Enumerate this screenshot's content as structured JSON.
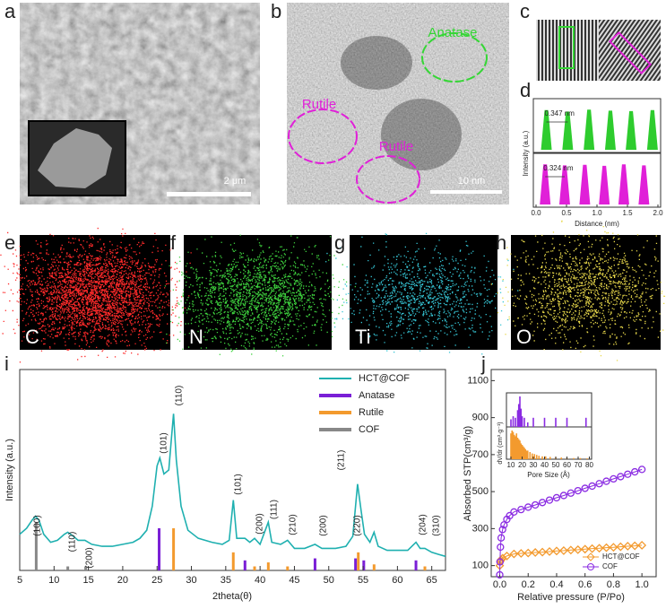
{
  "panel_labels": [
    "a",
    "b",
    "c",
    "d",
    "e",
    "f",
    "g",
    "h",
    "i",
    "j"
  ],
  "images": {
    "a": {
      "scale_bar": "2 μm"
    },
    "b": {
      "scale_bar": "10 nm",
      "annotations": [
        "Anatase",
        "Rutile",
        "Rutile"
      ]
    },
    "eds": [
      "C",
      "N",
      "Ti",
      "O"
    ]
  },
  "chart_data": [
    {
      "type": "bar",
      "x_label": "Distance (nm)",
      "y_label": "Intensity (a.u.)",
      "xlim": [
        0,
        2
      ],
      "xticks": [
        {
          "value": 0,
          "label": "0.0"
        },
        {
          "value": 0.5,
          "label": "0.5"
        },
        {
          "value": 1,
          "label": "1.0"
        },
        {
          "value": 1.5,
          "label": "1.5"
        },
        {
          "value": 2,
          "label": "2.0"
        }
      ],
      "ylim": [
        0,
        1
      ],
      "annotations": [
        "0.347 nm",
        "0.324 nm"
      ],
      "series": [
        {
          "color": "#2ecc2e",
          "x": [
            0.17,
            0.52,
            0.87,
            1.22,
            1.56,
            1.91
          ],
          "values": [
            0.85,
            0.82,
            0.86,
            0.84,
            0.83,
            0.85
          ]
        },
        {
          "color": "#e020d8",
          "x": [
            0.15,
            0.47,
            0.8,
            1.12,
            1.44,
            1.77
          ],
          "values": [
            0.86,
            0.84,
            0.85,
            0.83,
            0.86,
            0.84
          ]
        }
      ]
    },
    {
      "type": "line",
      "x_label": "2theta(θ)",
      "y_label": "Intensity (a.u.)",
      "xlim": [
        5,
        67
      ],
      "xticks": [
        5,
        10,
        15,
        20,
        25,
        30,
        35,
        40,
        45,
        50,
        55,
        60,
        65
      ],
      "ylim": [
        0,
        100
      ],
      "legend": "upper right",
      "annotations": [
        "(100)",
        "(110)",
        "(200)",
        "(101)",
        "(110)",
        "(101)",
        "(200)",
        "(111)",
        "(210)",
        "(200)",
        "(211)",
        "(220)",
        "(204)",
        "(310)"
      ],
      "series": [
        {
          "name": "HCT@COF",
          "color": "#1fb0b0",
          "mark": "line",
          "x": [
            5,
            6,
            6.8,
            7.3,
            7.8,
            8.5,
            9.5,
            10.5,
            11.5,
            12,
            12.8,
            13.5,
            14.5,
            15.5,
            17,
            18.5,
            20,
            21.5,
            22.5,
            23.5,
            24.3,
            25,
            25.4,
            26,
            26.7,
            27.1,
            27.4,
            27.8,
            28.5,
            29.5,
            31,
            33,
            34.5,
            35.5,
            36.1,
            36.6,
            37.8,
            38.5,
            39.2,
            40,
            41.2,
            41.7,
            43,
            44,
            45,
            46.5,
            48,
            49,
            51,
            52.5,
            53.5,
            54.2,
            54.7,
            55.2,
            56,
            56.6,
            57.2,
            58.5,
            60,
            61.5,
            62.7,
            63.3,
            64,
            65,
            66,
            67
          ],
          "values": [
            18,
            21,
            25,
            27,
            25,
            18,
            14,
            15,
            18,
            19,
            17,
            15,
            15,
            13,
            12,
            12,
            13,
            14,
            16,
            20,
            32,
            52,
            56,
            48,
            50,
            66,
            78,
            55,
            32,
            20,
            16,
            14,
            13,
            15,
            35,
            16,
            16,
            14,
            16,
            13,
            24,
            14,
            13,
            15,
            11,
            11,
            13,
            11,
            11,
            12,
            17,
            43,
            30,
            18,
            14,
            19,
            12,
            10,
            10,
            10,
            14,
            11,
            11,
            9,
            8,
            7
          ]
        },
        {
          "name": "Anatase",
          "color": "#7a1fd6",
          "mark": "bar",
          "x": [
            25.3,
            37.8,
            48.0,
            53.9,
            55.1,
            62.7
          ],
          "values": [
            21,
            5,
            6,
            6,
            5,
            5
          ]
        },
        {
          "name": "Rutile",
          "color": "#f39a2e",
          "mark": "bar",
          "x": [
            27.4,
            36.1,
            39.2,
            41.2,
            44.0,
            54.3,
            56.6,
            64.0
          ],
          "values": [
            21,
            9,
            2,
            4,
            2,
            9,
            3,
            2
          ]
        },
        {
          "name": "COF",
          "color": "#888888",
          "mark": "bar",
          "x": [
            7.4,
            12.0,
            14.6
          ],
          "values": [
            24,
            2,
            2
          ]
        }
      ]
    },
    {
      "type": "scatter",
      "x_label": "Relative pressure (P/Po)",
      "y_label": "Absorbed STP(cm³/g)",
      "xlim": [
        -0.06,
        1.1
      ],
      "xticks": [
        {
          "value": 0,
          "label": "0.0"
        },
        {
          "value": 0.2,
          "label": "0.2"
        },
        {
          "value": 0.4,
          "label": "0.4"
        },
        {
          "value": 0.6,
          "label": "0.6"
        },
        {
          "value": 0.8,
          "label": "0.8"
        },
        {
          "value": 1,
          "label": "1.0"
        }
      ],
      "ylim": [
        40,
        1160
      ],
      "yticks": [
        100,
        300,
        500,
        700,
        900,
        1100
      ],
      "legend": "lower right",
      "series": [
        {
          "name": "HCT@COF",
          "color": "#f39a2e",
          "marker": "diamond",
          "x": [
            0,
            0.005,
            0.01,
            0.02,
            0.05,
            0.1,
            0.15,
            0.2,
            0.25,
            0.3,
            0.35,
            0.4,
            0.45,
            0.5,
            0.55,
            0.6,
            0.65,
            0.7,
            0.75,
            0.8,
            0.85,
            0.9,
            0.95,
            1.0
          ],
          "values": [
            100,
            125,
            132,
            140,
            152,
            163,
            166,
            168,
            171,
            173,
            176,
            179,
            181,
            184,
            186,
            189,
            192,
            194,
            197,
            199,
            202,
            205,
            207,
            210
          ]
        },
        {
          "name": "COF",
          "color": "#8a2be2",
          "marker": "circle",
          "x": [
            0,
            0.002,
            0.005,
            0.01,
            0.02,
            0.03,
            0.05,
            0.07,
            0.1,
            0.15,
            0.2,
            0.25,
            0.3,
            0.35,
            0.4,
            0.45,
            0.5,
            0.55,
            0.6,
            0.65,
            0.7,
            0.75,
            0.8,
            0.85,
            0.9,
            0.95,
            1.0
          ],
          "values": [
            50,
            120,
            200,
            250,
            295,
            320,
            350,
            370,
            390,
            403,
            416,
            428,
            441,
            454,
            467,
            479,
            492,
            505,
            518,
            530,
            543,
            556,
            569,
            581,
            594,
            607,
            620
          ]
        }
      ]
    },
    {
      "type": "bar",
      "x_label": "Pore Size (Å)",
      "y_label": "dV/dr (cm³·g⁻¹)",
      "xlim": [
        6,
        82
      ],
      "xticks": [
        10,
        20,
        30,
        40,
        50,
        60,
        70,
        80
      ],
      "ylim": [
        0,
        1
      ],
      "series": [
        {
          "color": "#8a2be2",
          "x": [
            10,
            12,
            14,
            16,
            17,
            18,
            19,
            20,
            22,
            25,
            30,
            40,
            50,
            60,
            77
          ],
          "values": [
            0.25,
            0.35,
            0.3,
            0.55,
            0.75,
            1.0,
            0.6,
            0.35,
            0.3,
            0.15,
            0.3,
            0.3,
            0.3,
            0.3,
            0.3
          ]
        },
        {
          "color": "#f39a2e",
          "x": [
            10,
            11,
            12,
            13,
            14,
            15,
            16,
            17,
            18,
            19,
            20,
            21,
            22,
            23,
            24,
            25,
            27,
            29,
            31,
            33,
            35,
            38,
            41,
            45,
            50,
            55,
            60,
            66,
            72,
            78
          ],
          "values": [
            0.9,
            1.0,
            0.95,
            0.85,
            0.8,
            0.9,
            0.75,
            0.7,
            0.65,
            0.55,
            0.5,
            0.45,
            0.4,
            0.35,
            0.3,
            0.3,
            0.25,
            0.2,
            0.18,
            0.15,
            0.12,
            0.1,
            0.1,
            0.08,
            0.07,
            0.06,
            0.05,
            0.04,
            0.04,
            0.03
          ]
        }
      ]
    }
  ]
}
